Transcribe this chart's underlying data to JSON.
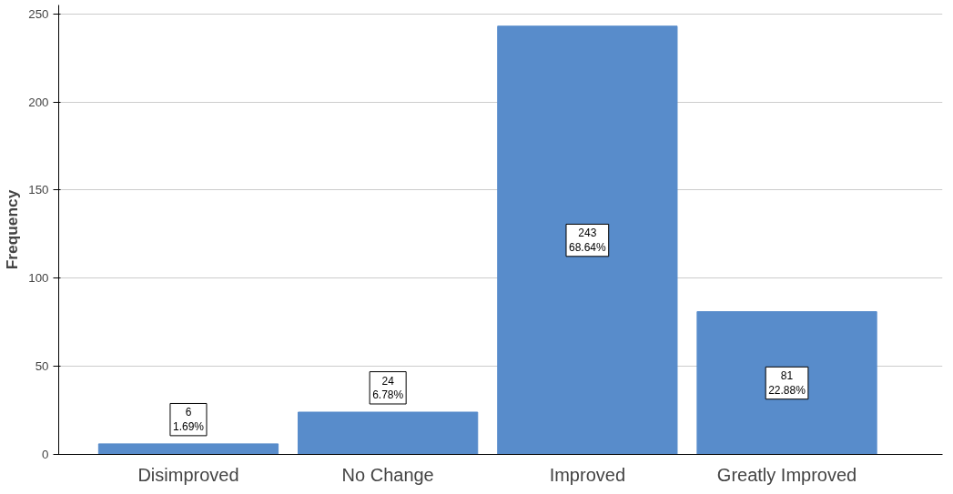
{
  "chart_data": {
    "type": "bar",
    "ylabel": "Frequency",
    "categories": [
      "Disimproved",
      "No Change",
      "Improved",
      "Greatly Improved"
    ],
    "values": [
      6,
      24,
      243,
      81
    ],
    "color": "#588ccb",
    "value_labels": [
      "6\n1.69%",
      "24\n6.78%",
      "243\n68.64%",
      "81\n22.88%"
    ],
    "ylim": [
      0,
      255
    ],
    "yticks": [
      0,
      50,
      100,
      150,
      200,
      250
    ],
    "grid": "y"
  }
}
